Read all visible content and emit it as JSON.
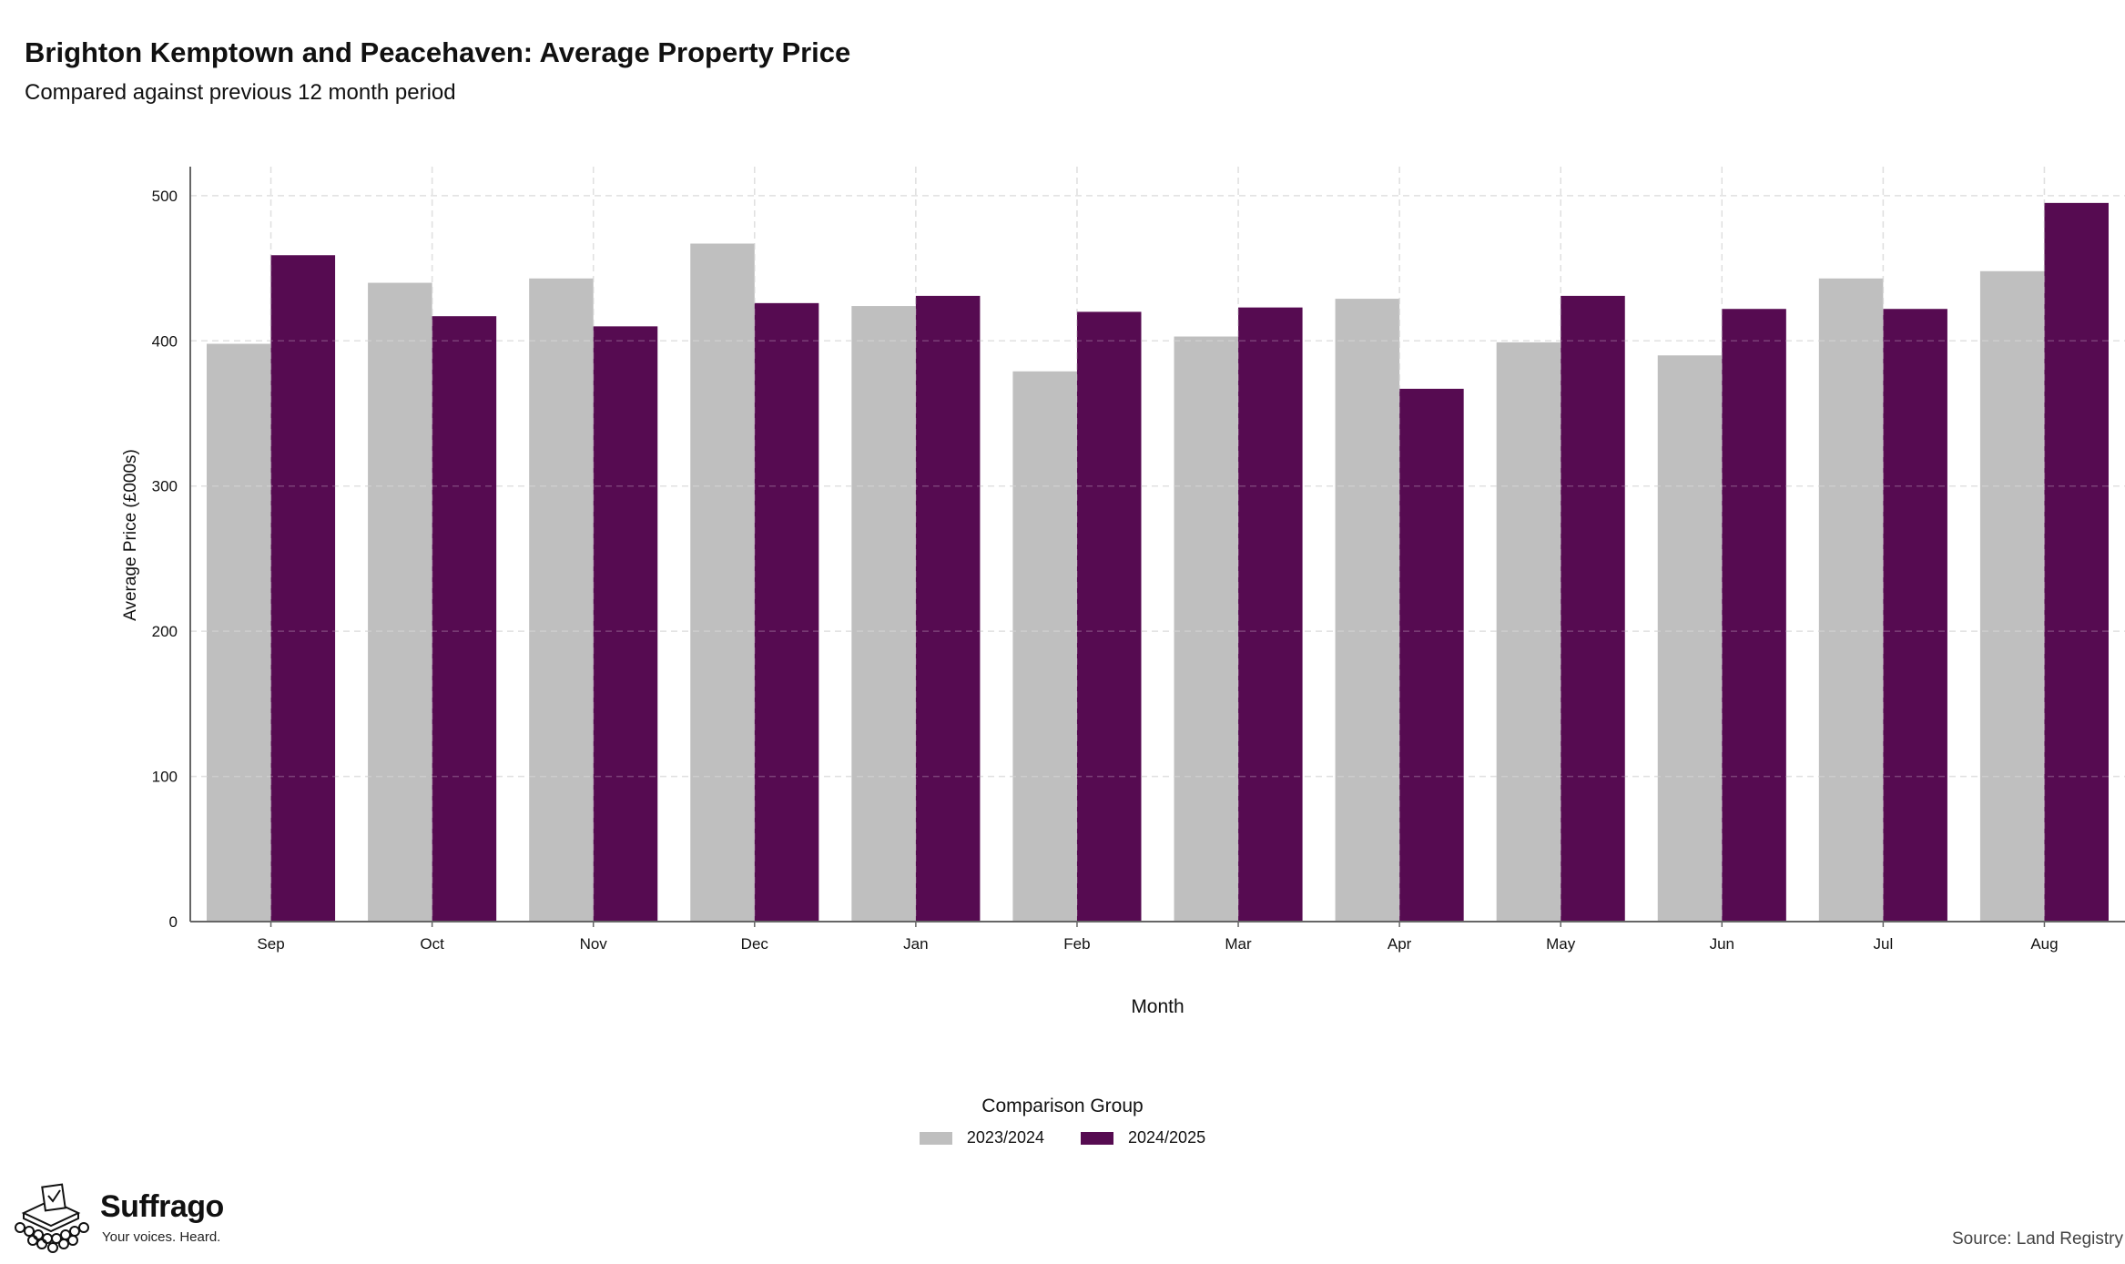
{
  "header": {
    "title": "Brighton Kemptown and Peacehaven: Average Property Price",
    "subtitle": "Compared against previous 12 month period"
  },
  "legend": {
    "title": "Comparison Group",
    "items": [
      {
        "label": "2023/2024",
        "color": "#bfbfbf"
      },
      {
        "label": "2024/2025",
        "color": "#560b51"
      }
    ]
  },
  "footer": {
    "source": "Source: Land Registry",
    "logo_name": "Suffrago",
    "logo_tagline": "Your voices. Heard."
  },
  "chart_data": {
    "type": "bar",
    "title": "Brighton Kemptown and Peacehaven: Average Property Price",
    "subtitle": "Compared against previous 12 month period",
    "xlabel": "Month",
    "ylabel": "Average Price (£000s)",
    "ylim": [
      0,
      520
    ],
    "yticks": [
      0,
      100,
      200,
      300,
      400,
      500
    ],
    "grid": true,
    "legend_position": "bottom",
    "categories": [
      "Sep",
      "Oct",
      "Nov",
      "Dec",
      "Jan",
      "Feb",
      "Mar",
      "Apr",
      "May",
      "Jun",
      "Jul",
      "Aug"
    ],
    "series": [
      {
        "name": "2023/2024",
        "color": "#bfbfbf",
        "values": [
          398,
          440,
          443,
          467,
          424,
          379,
          403,
          429,
          399,
          390,
          443,
          448
        ]
      },
      {
        "name": "2024/2025",
        "color": "#560b51",
        "values": [
          459,
          417,
          410,
          426,
          431,
          420,
          423,
          367,
          431,
          422,
          422,
          495
        ]
      }
    ]
  }
}
